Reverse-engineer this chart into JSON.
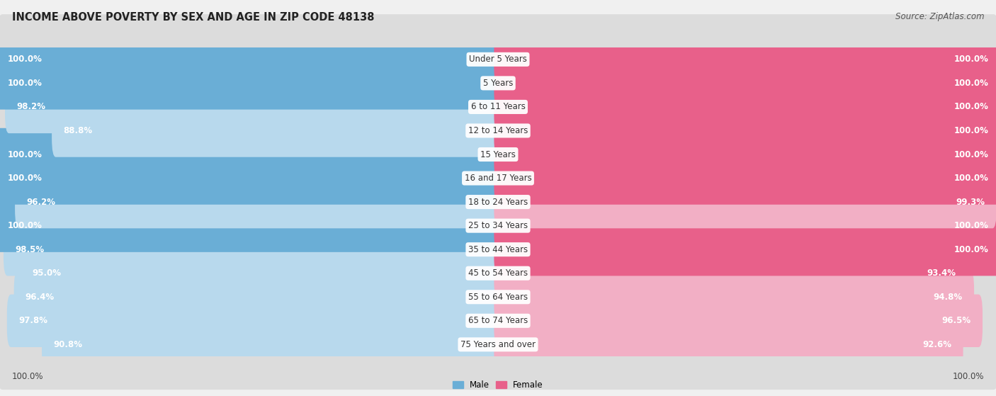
{
  "title": "INCOME ABOVE POVERTY BY SEX AND AGE IN ZIP CODE 48138",
  "source": "Source: ZipAtlas.com",
  "categories": [
    "Under 5 Years",
    "5 Years",
    "6 to 11 Years",
    "12 to 14 Years",
    "15 Years",
    "16 and 17 Years",
    "18 to 24 Years",
    "25 to 34 Years",
    "35 to 44 Years",
    "45 to 54 Years",
    "55 to 64 Years",
    "65 to 74 Years",
    "75 Years and over"
  ],
  "male_values": [
    100.0,
    100.0,
    98.2,
    88.8,
    100.0,
    100.0,
    96.2,
    100.0,
    98.5,
    95.0,
    96.4,
    97.8,
    90.8
  ],
  "female_values": [
    100.0,
    100.0,
    100.0,
    100.0,
    100.0,
    100.0,
    99.3,
    100.0,
    100.0,
    93.4,
    94.8,
    96.5,
    92.6
  ],
  "male_color_full": "#6aaed6",
  "male_color_light": "#b8d9ed",
  "female_color_full": "#e8608a",
  "female_color_light": "#f2afc5",
  "bar_track_color": "#e8e8e8",
  "background_color": "#f0f0f0",
  "row_bg_color": "#e0e0e0",
  "title_fontsize": 10.5,
  "source_fontsize": 8.5,
  "value_fontsize": 8.5,
  "category_fontsize": 8.5,
  "axis_label_bottom_left": "100.0%",
  "axis_label_bottom_right": "100.0%"
}
